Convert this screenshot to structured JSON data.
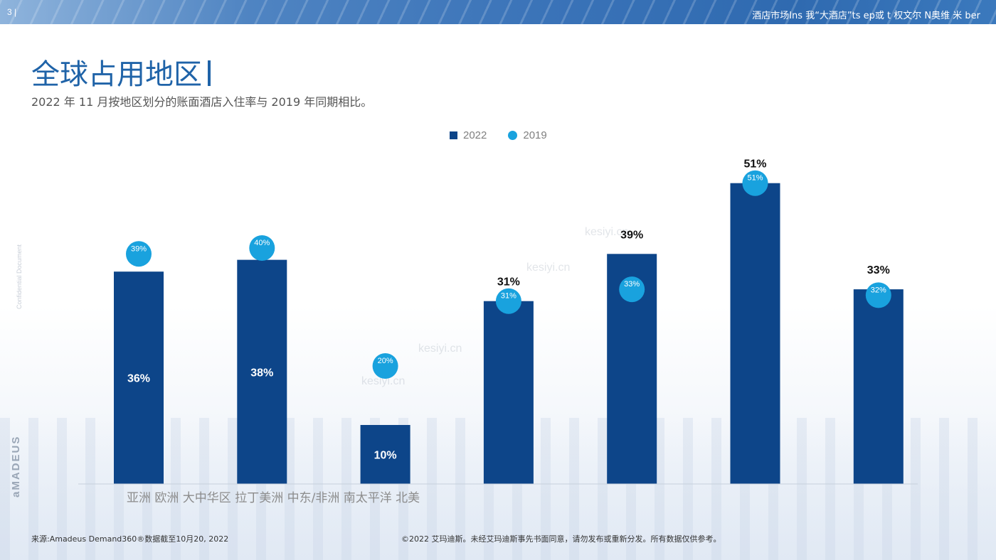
{
  "header": {
    "slide_number": "3 |",
    "banner_text": "酒店市场Ins 我“大酒店”ts ep或 t 权文尔 N奥维 米 ber"
  },
  "title": "全球占用地区",
  "subtitle": "2022 年 11 月按地区划分的账面酒店入住率与 2019 年同期相比。",
  "side_text": "Confidential Document",
  "brand": "aMADEUS",
  "watermark": "kesiyi.cn",
  "footer": {
    "source": "来源:Amadeus Demand360®数据截至10月20, 2022",
    "copyright": "©2022 艾玛迪斯。未经艾玛迪斯事先书面同意，请勿发布或重新分发。所有数据仅供参考。"
  },
  "colors": {
    "bar_2022": "#0d4589",
    "dot_2019": "#19a2de",
    "title": "#1f63a8"
  },
  "chart_data": {
    "type": "bar",
    "title": "",
    "xlabel": "",
    "ylabel": "",
    "ylim": [
      0,
      60
    ],
    "grid": false,
    "legend_position": "top-center",
    "axis_label_line": "亚洲 欧洲 大中华区 拉丁美洲 中东/非洲 南太平洋 北美",
    "categories": [
      "亚洲",
      "欧洲",
      "大中华区",
      "拉丁美洲",
      "中东/非洲",
      "南太平洋",
      "北美"
    ],
    "series": [
      {
        "name": "2022",
        "kind": "bar",
        "values": [
          36,
          38,
          10,
          31,
          39,
          51,
          33
        ],
        "labels": [
          "36%",
          "38%",
          "10%",
          "31%",
          "39%",
          "51%",
          "33%"
        ],
        "label_position": [
          "inside",
          "inside",
          "inside",
          "above",
          "above",
          "above",
          "above"
        ]
      },
      {
        "name": "2019",
        "kind": "marker",
        "values": [
          39,
          40,
          20,
          31,
          33,
          51,
          32
        ],
        "labels": [
          "39%",
          "40%",
          "20%",
          "31%",
          "33%",
          "51%",
          "32%"
        ]
      }
    ]
  }
}
